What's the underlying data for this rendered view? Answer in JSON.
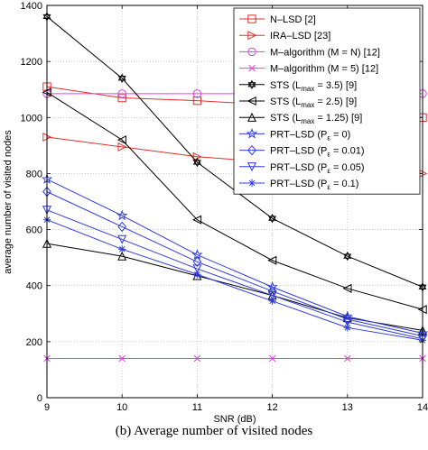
{
  "chart_data": {
    "type": "line",
    "xlabel": "SNR (dB)",
    "ylabel": "average number of visited nodes",
    "xlim": [
      9,
      14
    ],
    "ylim": [
      0,
      1400
    ],
    "x_ticks": [
      "9",
      "10",
      "11",
      "12",
      "13",
      "14"
    ],
    "y_ticks": [
      "0",
      "200",
      "400",
      "600",
      "800",
      "1000",
      "1200",
      "1400"
    ],
    "grid": true,
    "legend_position": "top-right",
    "x": [
      9,
      10,
      11,
      12,
      13,
      14
    ],
    "series": [
      {
        "name": "N–LSD [2]",
        "color": "#e0302a",
        "marker": "square",
        "values": [
          1110,
          1070,
          1060,
          1045,
          1030,
          1000
        ]
      },
      {
        "name": "IRA–LSD [23]",
        "color": "#e0302a",
        "marker": "triangle-right",
        "values": [
          930,
          895,
          860,
          840,
          820,
          800
        ]
      },
      {
        "name": "M–algorithm (M = N) [12]",
        "color": "#e040e0",
        "marker": "circle",
        "values": [
          1085,
          1085,
          1085,
          1085,
          1085,
          1085
        ]
      },
      {
        "name": "M–algorithm (M = 5) [12]",
        "color": "#e040e0",
        "marker": "x",
        "values": [
          140,
          140,
          140,
          140,
          140,
          140
        ]
      },
      {
        "name": "STS (L",
        "sub": "max",
        "suffix": " = 3.5) [9]",
        "color": "#000000",
        "marker": "hexagram",
        "values": [
          1360,
          1140,
          840,
          640,
          505,
          395
        ]
      },
      {
        "name": "STS (L",
        "sub": "max",
        "suffix": " = 2.5) [9]",
        "color": "#000000",
        "marker": "triangle-left",
        "values": [
          1090,
          920,
          635,
          490,
          390,
          315
        ]
      },
      {
        "name": "STS (L",
        "sub": "max",
        "suffix": " = 1.25) [9]",
        "color": "#000000",
        "marker": "triangle-up",
        "values": [
          550,
          505,
          435,
          365,
          285,
          240
        ]
      },
      {
        "name": "PRT–LSD (P",
        "sub": "ε",
        "suffix": " = 0)",
        "color": "#2f3be0",
        "marker": "star",
        "values": [
          780,
          650,
          510,
          395,
          290,
          230
        ]
      },
      {
        "name": "PRT–LSD (P",
        "sub": "ε",
        "suffix": " = 0.01)",
        "color": "#2f3be0",
        "marker": "diamond",
        "values": [
          735,
          610,
          485,
          380,
          280,
          220
        ]
      },
      {
        "name": "PRT–LSD (P",
        "sub": "ε",
        "suffix": " = 0.05)",
        "color": "#2f3be0",
        "marker": "triangle-down",
        "values": [
          670,
          565,
          460,
          365,
          270,
          210
        ]
      },
      {
        "name": "PRT–LSD (P",
        "sub": "ε",
        "suffix": " = 0.1)",
        "color": "#2f3be0",
        "marker": "asterisk",
        "values": [
          635,
          530,
          440,
          345,
          250,
          205
        ]
      }
    ]
  },
  "caption": "(b)  Average number of visited nodes"
}
